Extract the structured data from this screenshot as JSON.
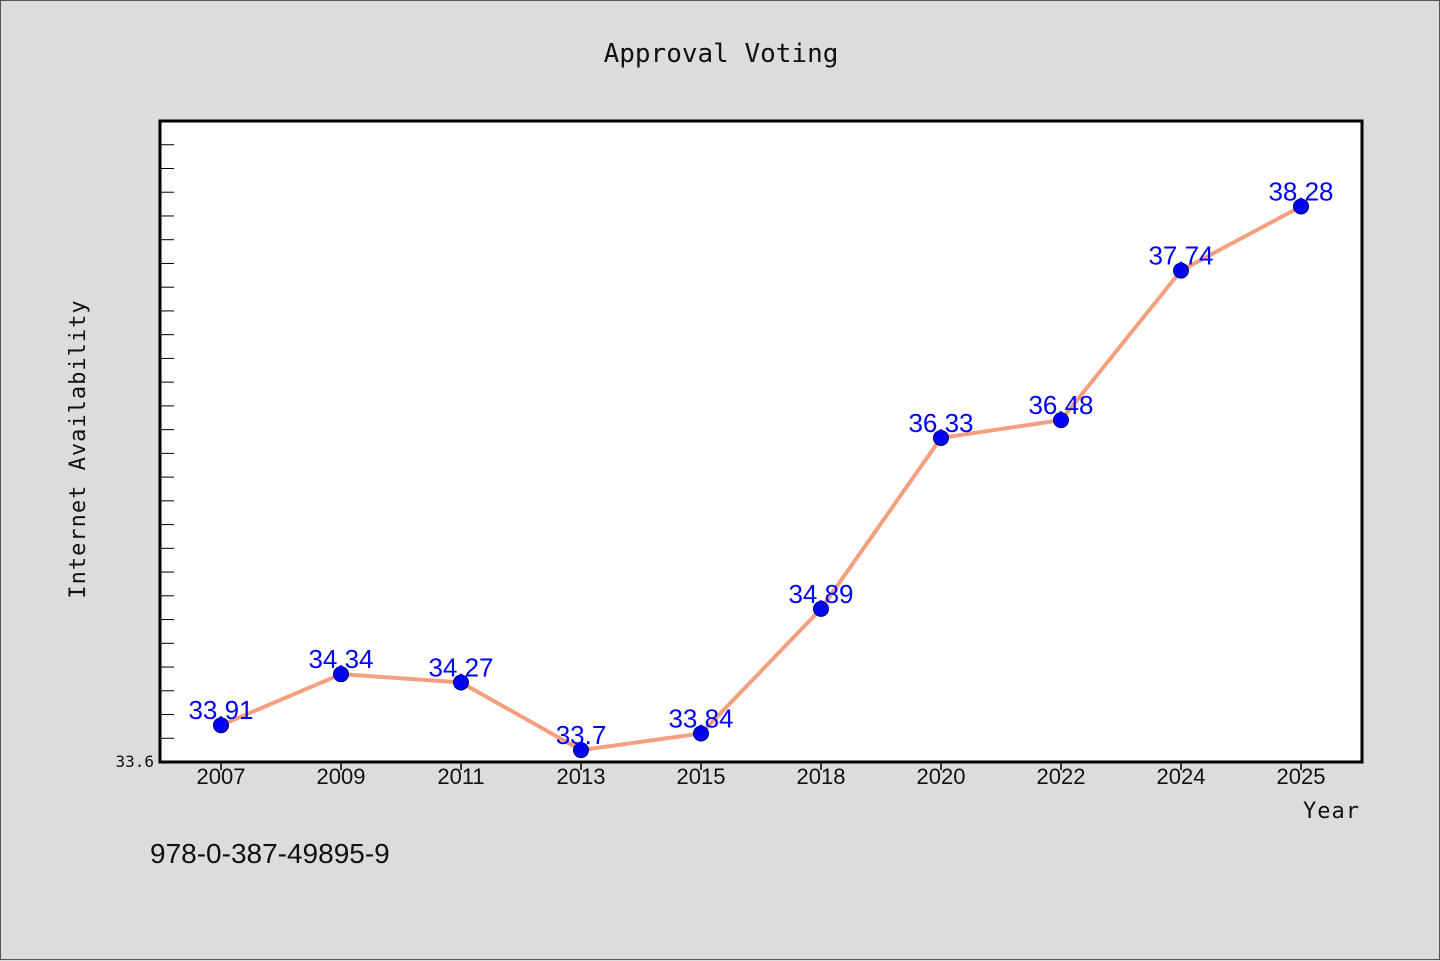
{
  "chart_data": {
    "type": "line",
    "title": "Approval Voting",
    "xlabel": "Year",
    "ylabel": "Internet Availability",
    "categories": [
      "2007",
      "2009",
      "2011",
      "2013",
      "2015",
      "2018",
      "2020",
      "2022",
      "2024",
      "2025"
    ],
    "values": [
      33.91,
      34.34,
      34.27,
      33.7,
      33.84,
      34.89,
      36.33,
      36.48,
      37.74,
      38.28
    ],
    "data_labels": [
      "33.91",
      "34.34",
      "34.27",
      "33.7",
      "33.84",
      "34.89",
      "36.33",
      "36.48",
      "37.74",
      "38.28"
    ],
    "ylim": [
      33.6,
      39.0
    ],
    "ytick_label": "33.6",
    "grid": false,
    "line_color": "#f4a07e",
    "marker_color": "#0000ff",
    "label_color": "#0000ff"
  },
  "footer": {
    "isbn": "978-0-387-49895-9"
  }
}
